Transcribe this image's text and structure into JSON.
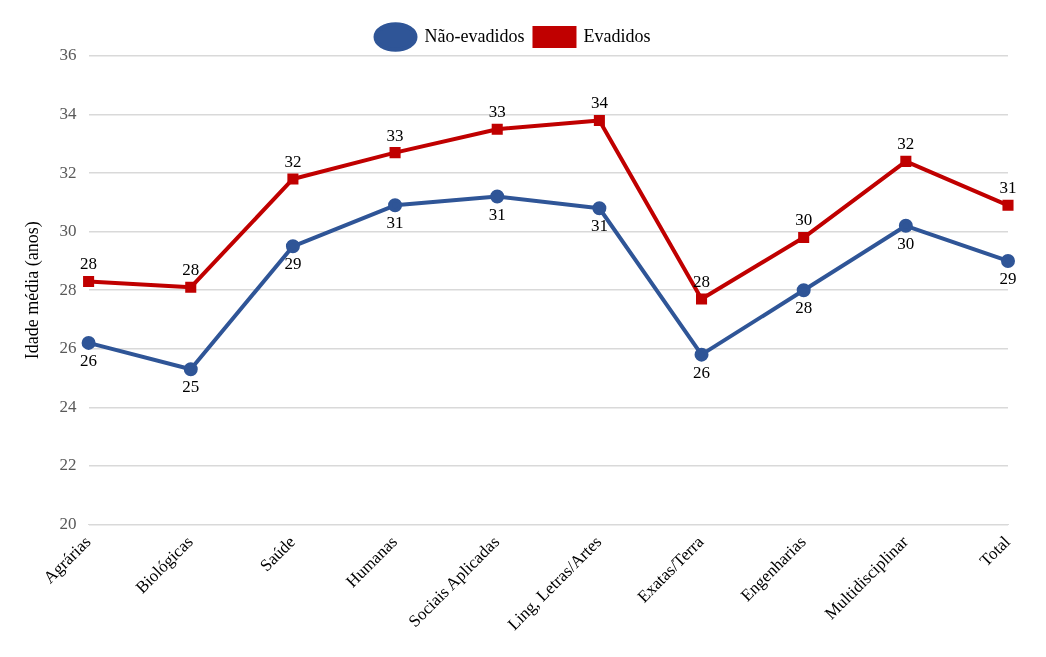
{
  "chart_data": {
    "type": "line",
    "ylabel": "Idade média (anos)",
    "categories": [
      "Agrárias",
      "Biológicas",
      "Saúde",
      "Humanas",
      "Sociais Aplicadas",
      "Ling, Letras/Artes",
      "Exatas/Terra",
      "Engenharias",
      "Multidisciplinar",
      "Total"
    ],
    "series": [
      {
        "name": "Não-evadidos",
        "color": "#2f5597",
        "marker": "circle",
        "values": [
          26.2,
          25.3,
          29.5,
          30.9,
          31.2,
          30.8,
          25.8,
          28.0,
          30.2,
          29.0
        ],
        "value_labels": [
          "26",
          "25",
          "29",
          "31",
          "31",
          "31",
          "26",
          "28",
          "30",
          "29"
        ]
      },
      {
        "name": "Evadidos",
        "color": "#c00000",
        "marker": "square",
        "values": [
          28.3,
          28.1,
          31.8,
          32.7,
          33.5,
          33.8,
          27.7,
          29.8,
          32.4,
          30.9
        ],
        "value_labels": [
          "28",
          "28",
          "32",
          "33",
          "33",
          "34",
          "28",
          "30",
          "32",
          "31"
        ]
      }
    ],
    "ylim": [
      20,
      36
    ],
    "yticks": [
      20,
      22,
      24,
      26,
      28,
      30,
      32,
      34,
      36
    ],
    "grid": "y",
    "legend": "top",
    "line_style": "solid"
  }
}
